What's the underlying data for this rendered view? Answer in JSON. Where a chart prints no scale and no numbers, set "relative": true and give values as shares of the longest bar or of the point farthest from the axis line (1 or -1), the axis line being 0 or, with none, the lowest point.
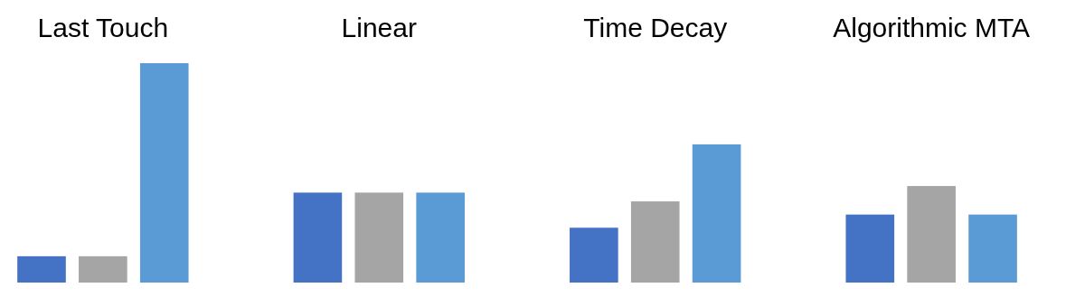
{
  "chart_data": {
    "type": "bar",
    "relative": true,
    "categories": [
      "Last Touch",
      "Linear",
      "Time Decay",
      "Algorithmic MTA"
    ],
    "series": [
      {
        "color": "#4472c4",
        "values": [
          0.12,
          0.41,
          0.25,
          0.31
        ]
      },
      {
        "color": "#a5a5a5",
        "values": [
          0.12,
          0.41,
          0.37,
          0.44
        ]
      },
      {
        "color": "#5b9bd5",
        "values": [
          1,
          0.41,
          0.63,
          0.31
        ]
      }
    ]
  }
}
